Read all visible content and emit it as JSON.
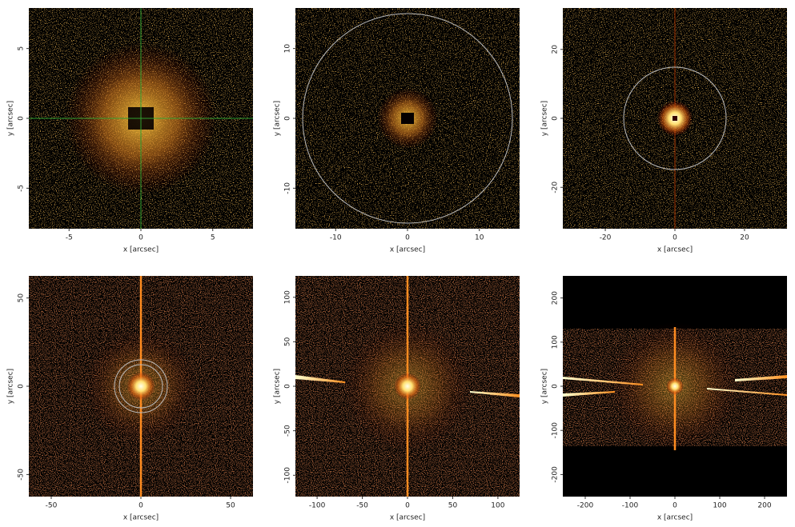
{
  "chart_data": [
    {
      "type": "image",
      "xlabel": "x [arcsec]",
      "ylabel": "y [arcsec]",
      "xlim": [
        -7.8,
        7.8
      ],
      "ylim": [
        -7.9,
        7.9
      ],
      "xticks": [
        -5,
        0,
        5
      ],
      "yticks": [
        -5,
        0,
        5
      ]
    },
    {
      "type": "image",
      "xlabel": "x [arcsec]",
      "ylabel": "y [arcsec]",
      "xlim": [
        -15.6,
        15.6
      ],
      "ylim": [
        -15.8,
        15.8
      ],
      "xticks": [
        -10,
        0,
        10
      ],
      "yticks": [
        -10,
        0,
        10
      ]
    },
    {
      "type": "image",
      "xlabel": "x [arcsec]",
      "ylabel": "y [arcsec]",
      "xlim": [
        -32.2,
        32.2
      ],
      "ylim": [
        -32,
        32
      ],
      "xticks": [
        -20,
        0,
        20
      ],
      "yticks": [
        -20,
        0,
        20
      ]
    },
    {
      "type": "image",
      "xlabel": "x [arcsec]",
      "ylabel": "y [arcsec]",
      "xlim": [
        -62.5,
        62.5
      ],
      "ylim": [
        -62.5,
        62.5
      ],
      "xticks": [
        -50,
        0,
        50
      ],
      "yticks": [
        -50,
        0,
        50
      ]
    },
    {
      "type": "image",
      "xlabel": "x [arcsec]",
      "ylabel": "y [arcsec]",
      "xlim": [
        -124,
        124
      ],
      "ylim": [
        -124,
        124
      ],
      "xticks": [
        -100,
        -50,
        0,
        50,
        100
      ],
      "yticks": [
        -100,
        -50,
        0,
        50,
        100
      ]
    },
    {
      "type": "image",
      "xlabel": "x [arcsec]",
      "ylabel": "y [arcsec]",
      "xlim": [
        -250,
        250
      ],
      "ylim": [
        -250,
        250
      ],
      "xticks": [
        -200,
        -100,
        0,
        100,
        200
      ],
      "yticks": [
        -200,
        -100,
        0,
        100,
        200
      ]
    }
  ]
}
